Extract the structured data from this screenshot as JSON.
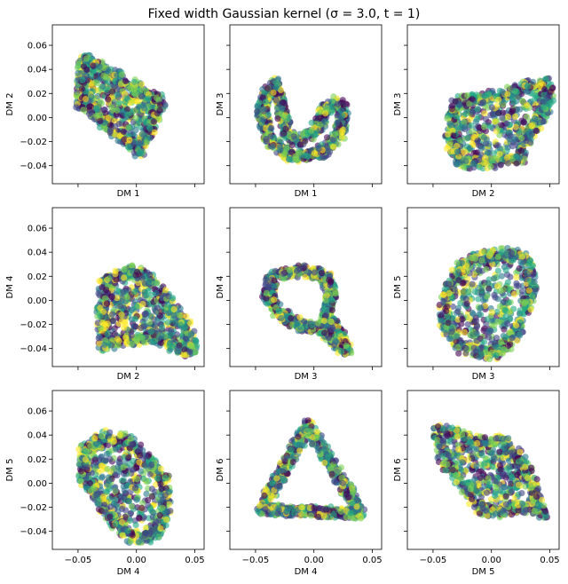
{
  "title": "Fixed width Gaussian kernel (σ = 3.0, t = 1)",
  "chart_data": {
    "type": "scatter",
    "grid": false,
    "shared_x": true,
    "shared_y": true,
    "xlim": [
      -0.072,
      0.058
    ],
    "ylim": [
      -0.055,
      0.077
    ],
    "xticks": [
      -0.05,
      0.0,
      0.05
    ],
    "xtick_labels": [
      "−0.05",
      "0.00",
      "0.05"
    ],
    "yticks": [
      -0.04,
      -0.02,
      0.0,
      0.02,
      0.04,
      0.06
    ],
    "ytick_labels": [
      "−0.04",
      "−0.02",
      "0.00",
      "0.02",
      "0.04",
      "0.06"
    ],
    "colormap": [
      "#440154",
      "#414487",
      "#2a788e",
      "#22a884",
      "#7ad151",
      "#fde725"
    ],
    "marker_alpha": 0.6,
    "panels": [
      {
        "xlabel": "DM 1",
        "ylabel": "DM 2",
        "shape": "quad",
        "vertices": [
          [
            -0.045,
            0.049
          ],
          [
            0.022,
            0.013
          ],
          [
            0.002,
            -0.028
          ],
          [
            -0.048,
            0.012
          ]
        ]
      },
      {
        "xlabel": "DM 1",
        "ylabel": "DM 3",
        "shape": "hook",
        "vertices": [
          [
            -0.038,
            0.025
          ],
          [
            -0.045,
            0.005
          ],
          [
            -0.038,
            -0.018
          ],
          [
            -0.018,
            -0.033
          ],
          [
            0.005,
            -0.03
          ],
          [
            0.022,
            -0.015
          ],
          [
            0.025,
            0.005
          ],
          [
            0.018,
            0.013
          ],
          [
            0.008,
            0.005
          ],
          [
            0.005,
            -0.005
          ],
          [
            -0.005,
            -0.015
          ],
          [
            -0.015,
            -0.02
          ],
          [
            -0.022,
            -0.015
          ],
          [
            -0.025,
            -0.005
          ],
          [
            -0.028,
            0.01
          ],
          [
            -0.034,
            0.03
          ]
        ]
      },
      {
        "xlabel": "DM 2",
        "ylabel": "DM 3",
        "shape": "fill",
        "vertices": [
          [
            -0.03,
            0.013
          ],
          [
            -0.005,
            0.017
          ],
          [
            0.012,
            0.02
          ],
          [
            0.035,
            0.028
          ],
          [
            0.05,
            0.028
          ],
          [
            0.048,
            0.01
          ],
          [
            0.038,
            -0.005
          ],
          [
            0.03,
            -0.02
          ],
          [
            0.025,
            -0.035
          ],
          [
            0.0,
            -0.038
          ],
          [
            -0.025,
            -0.038
          ],
          [
            -0.035,
            -0.02
          ],
          [
            -0.035,
            0.0
          ]
        ]
      },
      {
        "xlabel": "DM 2",
        "ylabel": "DM 4",
        "shape": "fill",
        "vertices": [
          [
            -0.028,
            0.015
          ],
          [
            -0.005,
            0.025
          ],
          [
            0.01,
            0.02
          ],
          [
            0.03,
            -0.005
          ],
          [
            0.045,
            -0.025
          ],
          [
            0.048,
            -0.043
          ],
          [
            0.03,
            -0.038
          ],
          [
            0.015,
            -0.03
          ],
          [
            -0.005,
            -0.033
          ],
          [
            -0.028,
            -0.038
          ],
          [
            -0.03,
            -0.01
          ]
        ]
      },
      {
        "xlabel": "DM 3",
        "ylabel": "DM 4",
        "shape": "loop",
        "vertices": [
          [
            -0.035,
            0.02
          ],
          [
            -0.01,
            0.025
          ],
          [
            0.01,
            0.02
          ],
          [
            0.015,
            0.005
          ],
          [
            0.01,
            -0.015
          ],
          [
            0.02,
            -0.025
          ],
          [
            0.028,
            -0.043
          ],
          [
            0.02,
            -0.035
          ],
          [
            0.005,
            -0.022
          ],
          [
            -0.01,
            -0.022
          ],
          [
            -0.03,
            -0.01
          ],
          [
            -0.04,
            0.005
          ]
        ]
      },
      {
        "xlabel": "DM 3",
        "ylabel": "DM 5",
        "shape": "fill",
        "vertices": [
          [
            -0.03,
            0.025
          ],
          [
            -0.015,
            0.035
          ],
          [
            0.01,
            0.04
          ],
          [
            0.03,
            0.035
          ],
          [
            0.035,
            0.01
          ],
          [
            0.025,
            -0.02
          ],
          [
            0.015,
            -0.035
          ],
          [
            0.0,
            -0.045
          ],
          [
            -0.025,
            -0.04
          ],
          [
            -0.04,
            -0.02
          ],
          [
            -0.04,
            0.0
          ]
        ]
      },
      {
        "xlabel": "DM 4",
        "ylabel": "DM 5",
        "shape": "fill",
        "vertices": [
          [
            -0.045,
            0.03
          ],
          [
            -0.025,
            0.04
          ],
          [
            -0.005,
            0.035
          ],
          [
            0.01,
            0.02
          ],
          [
            0.025,
            0.0
          ],
          [
            0.025,
            -0.025
          ],
          [
            0.015,
            -0.045
          ],
          [
            -0.005,
            -0.045
          ],
          [
            -0.02,
            -0.03
          ],
          [
            -0.035,
            -0.01
          ],
          [
            -0.045,
            0.005
          ]
        ]
      },
      {
        "xlabel": "DM 4",
        "ylabel": "DM 6",
        "shape": "triangle",
        "vertices": [
          [
            -0.005,
            0.048
          ],
          [
            0.04,
            -0.025
          ],
          [
            -0.045,
            -0.022
          ]
        ]
      },
      {
        "xlabel": "DM 5",
        "ylabel": "DM 6",
        "shape": "fill",
        "vertices": [
          [
            -0.045,
            0.045
          ],
          [
            -0.02,
            0.038
          ],
          [
            0.01,
            0.035
          ],
          [
            0.025,
            0.02
          ],
          [
            0.035,
            0.0
          ],
          [
            0.04,
            -0.02
          ],
          [
            0.045,
            -0.025
          ],
          [
            0.025,
            -0.02
          ],
          [
            0.005,
            -0.025
          ],
          [
            -0.01,
            -0.022
          ],
          [
            -0.02,
            -0.005
          ],
          [
            -0.035,
            0.01
          ],
          [
            -0.045,
            0.03
          ]
        ]
      }
    ]
  }
}
